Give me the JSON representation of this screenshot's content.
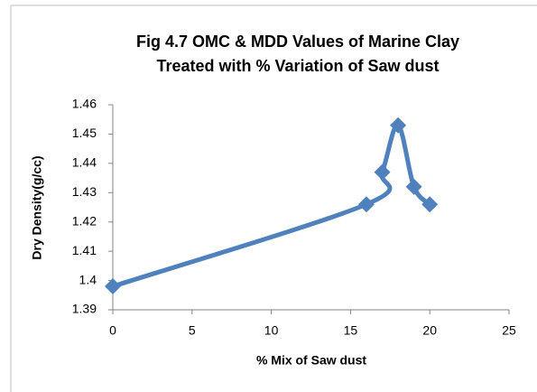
{
  "chart_data": {
    "type": "line",
    "title": [
      "Fig 4.7 OMC & MDD Values of Marine Clay",
      "Treated with % Variation of Saw dust"
    ],
    "x_label": "% Mix of Saw dust",
    "y_label": "Dry Density(g/cc)",
    "x": [
      0,
      16,
      17,
      18,
      19,
      20
    ],
    "series": [
      {
        "name": "MDD",
        "color": "#4f81bd",
        "values": [
          1.398,
          1.426,
          1.437,
          1.453,
          1.432,
          1.426
        ]
      }
    ],
    "xlim": [
      0,
      25
    ],
    "xticks": [
      0,
      5,
      10,
      15,
      20,
      25
    ],
    "ylim": [
      1.39,
      1.46
    ],
    "yticks": [
      1.39,
      1.4,
      1.41,
      1.42,
      1.43,
      1.44,
      1.45,
      1.46
    ],
    "grid": false
  }
}
